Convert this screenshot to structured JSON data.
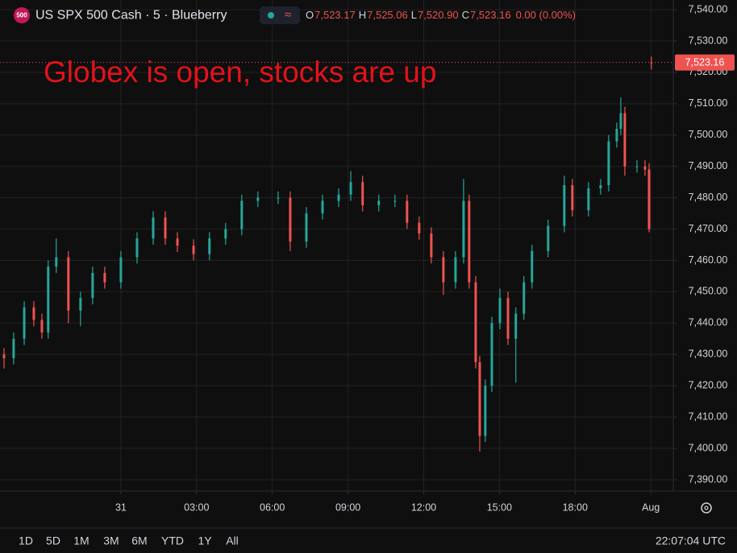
{
  "chart_data": {
    "type": "candlestick",
    "symbol_badge": "500",
    "title": "US SPX 500 Cash · 5 · Blueberry",
    "ohlc_legend": [
      {
        "key": "O",
        "text": "7,523.17"
      },
      {
        "key": "H",
        "text": "7,525.06"
      },
      {
        "key": "L",
        "text": "7,520.90"
      },
      {
        "key": "C",
        "text": "7,523.16"
      }
    ],
    "change_text": "0.00 (0.00%)",
    "annotation": "Globex is open, stocks are up",
    "up_color": "#26a69a",
    "down_color": "#ef5350",
    "grid": true,
    "xlim": [
      -4.79,
      21.89
    ],
    "xticks": [
      {
        "value": 0,
        "label": "31"
      },
      {
        "value": 3,
        "label": "03:00"
      },
      {
        "value": 6,
        "label": "06:00"
      },
      {
        "value": 9,
        "label": "09:00"
      },
      {
        "value": 12,
        "label": "12:00"
      },
      {
        "value": 15,
        "label": "15:00"
      },
      {
        "value": 18,
        "label": "18:00"
      },
      {
        "value": 21,
        "label": "Aug"
      }
    ],
    "ylim": [
      7386.4,
      7543.1
    ],
    "yticks": [
      {
        "value": 7390,
        "label": "7,390.00"
      },
      {
        "value": 7400,
        "label": "7,400.00"
      },
      {
        "value": 7410,
        "label": "7,410.00"
      },
      {
        "value": 7420,
        "label": "7,420.00"
      },
      {
        "value": 7430,
        "label": "7,430.00"
      },
      {
        "value": 7440,
        "label": "7,440.00"
      },
      {
        "value": 7450,
        "label": "7,450.00"
      },
      {
        "value": 7460,
        "label": "7,460.00"
      },
      {
        "value": 7470,
        "label": "7,470.00"
      },
      {
        "value": 7480,
        "label": "7,480.00"
      },
      {
        "value": 7490,
        "label": "7,490.00"
      },
      {
        "value": 7500,
        "label": "7,500.00"
      },
      {
        "value": 7510,
        "label": "7,510.00"
      },
      {
        "value": 7520,
        "label": "7,520.00"
      },
      {
        "value": 7530,
        "label": "7,530.00"
      },
      {
        "value": 7540,
        "label": "7,540.00"
      }
    ],
    "last_price": {
      "value": 7523.16,
      "label": "7,523.16"
    },
    "x": [
      -4.63,
      -4.25,
      -3.83,
      -3.45,
      -3.13,
      -2.88,
      -2.56,
      -2.08,
      -1.6,
      -1.12,
      -0.64,
      0,
      0.64,
      1.28,
      1.76,
      2.24,
      2.88,
      3.51,
      4.15,
      4.79,
      5.43,
      6.23,
      6.71,
      7.35,
      7.99,
      8.63,
      9.11,
      9.58,
      10.22,
      10.86,
      11.34,
      11.82,
      12.3,
      12.78,
      13.26,
      13.58,
      13.8,
      14.06,
      14.22,
      14.44,
      14.7,
      15.02,
      15.34,
      15.65,
      15.97,
      16.29,
      16.93,
      17.57,
      17.89,
      18.53,
      19.01,
      19.33,
      19.65,
      19.81,
      19.97,
      20.45,
      20.77,
      20.93,
      21.02
    ],
    "open": [
      7430,
      7428.8,
      7435,
      7445,
      7441,
      7437,
      7458,
      7461,
      7444,
      7448,
      7456,
      7453,
      7461,
      7467,
      7473.7,
      7467,
      7464.7,
      7462,
      7467,
      7470,
      7479,
      7480,
      7480,
      7466,
      7475,
      7479,
      7481,
      7485,
      7477.6,
      7479,
      7479,
      7472,
      7468.6,
      7461,
      7453,
      7461,
      7479,
      7453,
      7427.5,
      7404,
      7420,
      7440,
      7448,
      7435,
      7443,
      7453,
      7463,
      7471,
      7484,
      7476,
      7483,
      7484,
      7498,
      7502,
      7507,
      7490,
      7490,
      7489,
      7523.17
    ],
    "high": [
      7432,
      7437,
      7447,
      7447,
      7443,
      7460,
      7467,
      7463,
      7450,
      7458,
      7458,
      7463,
      7469,
      7475.7,
      7475.7,
      7469,
      7466.7,
      7469,
      7472,
      7481,
      7482,
      7482,
      7482,
      7477,
      7481,
      7483,
      7488.5,
      7487,
      7481,
      7481,
      7481,
      7474,
      7470.6,
      7463,
      7463,
      7486,
      7481,
      7455,
      7429.5,
      7422,
      7442,
      7451,
      7450,
      7445,
      7455,
      7465,
      7473,
      7487,
      7486,
      7485,
      7486,
      7500,
      7504,
      7512,
      7509,
      7492,
      7492,
      7491,
      7525.06
    ],
    "low": [
      7425.5,
      7426.8,
      7433,
      7439,
      7435,
      7435,
      7456,
      7440,
      7439,
      7446,
      7451,
      7451,
      7459,
      7465,
      7465,
      7462.7,
      7460,
      7460,
      7465,
      7468,
      7477,
      7478,
      7463,
      7464,
      7473,
      7477,
      7479,
      7475.6,
      7475.6,
      7477,
      7470,
      7466.6,
      7459,
      7449,
      7451,
      7459,
      7451,
      7425.5,
      7399,
      7402,
      7418,
      7438,
      7433,
      7421,
      7441,
      7451,
      7461,
      7469,
      7474,
      7474,
      7481,
      7482,
      7496,
      7500,
      7487,
      7488,
      7487,
      7469,
      7520.9
    ],
    "close": [
      7428.8,
      7435,
      7445,
      7441,
      7437,
      7458,
      7461,
      7444,
      7448,
      7456,
      7453,
      7461,
      7467,
      7473.7,
      7467,
      7464.7,
      7462,
      7467,
      7470,
      7479,
      7480,
      7480,
      7466,
      7475,
      7479,
      7481,
      7485,
      7477.6,
      7479,
      7479,
      7472,
      7468.6,
      7461,
      7453,
      7461,
      7479,
      7453,
      7427.5,
      7404,
      7420,
      7440,
      7448,
      7435,
      7443,
      7453,
      7463,
      7471,
      7484,
      7476,
      7483,
      7484,
      7498,
      7502,
      7507,
      7490,
      7490,
      7489,
      7470,
      7523.16
    ]
  },
  "toolbar": {
    "ranges": [
      "1D",
      "5D",
      "1M",
      "3M",
      "6M",
      "YTD",
      "1Y",
      "All"
    ],
    "clock": "22:07:04 UTC"
  }
}
